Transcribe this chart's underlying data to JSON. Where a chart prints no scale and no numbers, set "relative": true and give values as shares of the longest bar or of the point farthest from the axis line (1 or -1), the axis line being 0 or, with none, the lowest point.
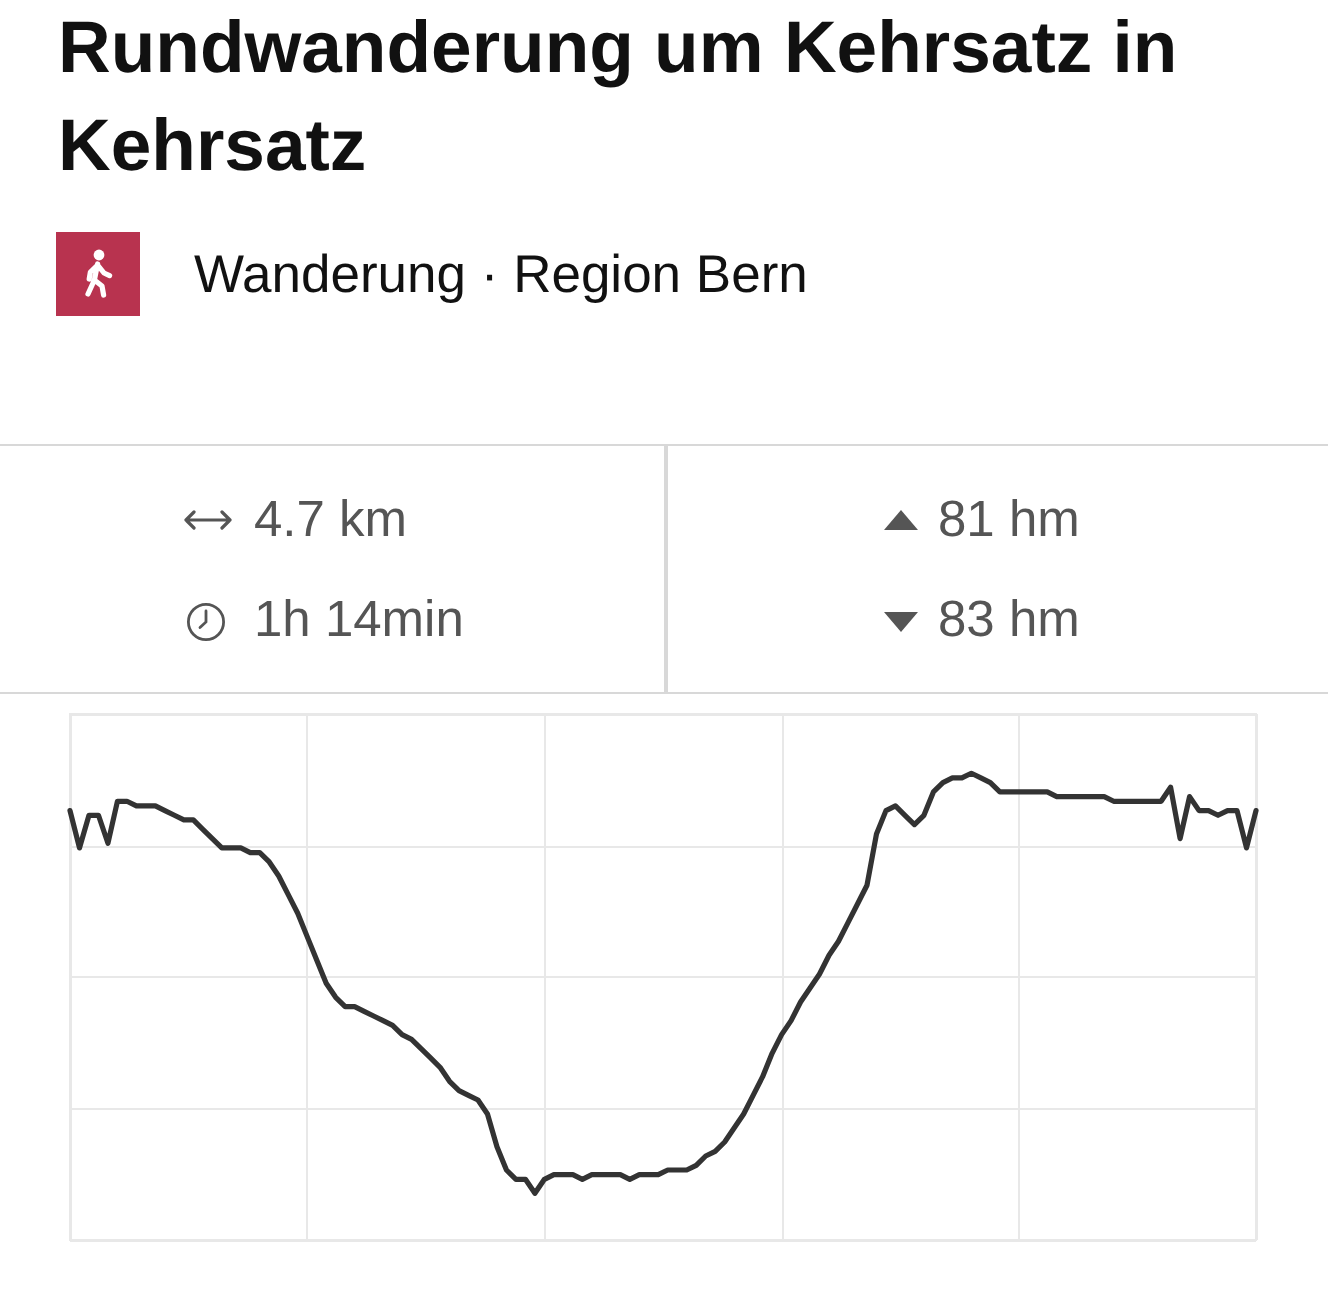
{
  "chart_data": {
    "type": "line",
    "title": "Rundwanderung um Kehrsatz in Kehrsatz",
    "subtitle": "Wanderung · Region Bern",
    "annotations": [
      "4.7 km",
      "1h 14min",
      "81 hm",
      "83 hm"
    ],
    "categories": [
      null,
      null,
      null,
      null,
      null,
      null,
      null,
      null,
      null,
      null,
      null,
      null,
      null,
      null,
      null,
      null,
      null,
      null,
      null,
      null,
      null,
      null,
      null,
      null,
      null,
      null,
      null,
      null,
      null,
      null,
      null,
      null,
      null,
      null,
      null,
      null,
      null,
      null,
      null,
      null,
      null,
      null,
      null,
      null,
      null,
      null,
      null,
      null,
      null,
      null,
      null,
      null,
      null,
      null,
      null,
      null,
      null,
      null,
      null,
      null,
      null,
      null,
      null,
      null,
      null,
      null,
      null,
      null,
      null,
      null,
      null,
      null,
      null,
      null,
      null,
      null,
      null,
      null,
      null,
      null,
      null,
      null,
      null,
      null,
      null,
      null,
      null,
      null,
      null,
      null,
      null,
      null,
      null,
      null,
      null,
      null,
      null,
      null,
      null,
      null,
      null,
      null,
      null,
      null,
      null,
      null,
      null,
      null,
      null,
      null,
      null,
      null,
      null,
      null,
      null,
      null,
      null,
      null,
      null,
      null,
      null,
      null,
      null,
      null,
      null,
      null
    ],
    "values": [
      0.92,
      0.84,
      0.91,
      0.91,
      0.85,
      0.94,
      0.94,
      0.93,
      0.93,
      0.93,
      0.92,
      0.91,
      0.9,
      0.9,
      0.88,
      0.86,
      0.84,
      0.84,
      0.84,
      0.83,
      0.83,
      0.81,
      0.78,
      0.74,
      0.7,
      0.65,
      0.6,
      0.55,
      0.52,
      0.5,
      0.5,
      0.49,
      0.48,
      0.47,
      0.46,
      0.44,
      0.43,
      0.41,
      0.39,
      0.37,
      0.34,
      0.32,
      0.31,
      0.3,
      0.27,
      0.2,
      0.15,
      0.13,
      0.13,
      0.1,
      0.13,
      0.14,
      0.14,
      0.14,
      0.13,
      0.14,
      0.14,
      0.14,
      0.14,
      0.13,
      0.14,
      0.14,
      0.14,
      0.15,
      0.15,
      0.15,
      0.16,
      0.18,
      0.19,
      0.21,
      0.24,
      0.27,
      0.31,
      0.35,
      0.4,
      0.44,
      0.47,
      0.51,
      0.54,
      0.57,
      0.61,
      0.64,
      0.68,
      0.72,
      0.76,
      0.87,
      0.92,
      0.93,
      0.91,
      0.89,
      0.91,
      0.96,
      0.98,
      0.99,
      0.99,
      1,
      0.99,
      0.98,
      0.96,
      0.96,
      0.96,
      0.96,
      0.96,
      0.96,
      0.95,
      0.95,
      0.95,
      0.95,
      0.95,
      0.95,
      0.94,
      0.94,
      0.94,
      0.94,
      0.94,
      0.94,
      0.97,
      0.86,
      0.95,
      0.92,
      0.92,
      0.91,
      0.92,
      0.92,
      0.84,
      0.92
    ],
    "color": "#333333",
    "relative": true,
    "grid": true
  }
}
